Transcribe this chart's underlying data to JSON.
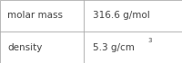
{
  "rows": [
    [
      "molar mass",
      "316.6 g/mol"
    ],
    [
      "density",
      "5.3 g/cm"
    ]
  ],
  "density_sup": "3",
  "col_split": 0.46,
  "background_color": "#f0f0f0",
  "cell_bg_color": "#ffffff",
  "border_color": "#aaaaaa",
  "text_color": "#404040",
  "label_fontsize": 7.5,
  "value_fontsize": 7.5,
  "sup_fontsize": 5.0,
  "figsize": [
    2.0,
    0.7
  ],
  "dpi": 100
}
